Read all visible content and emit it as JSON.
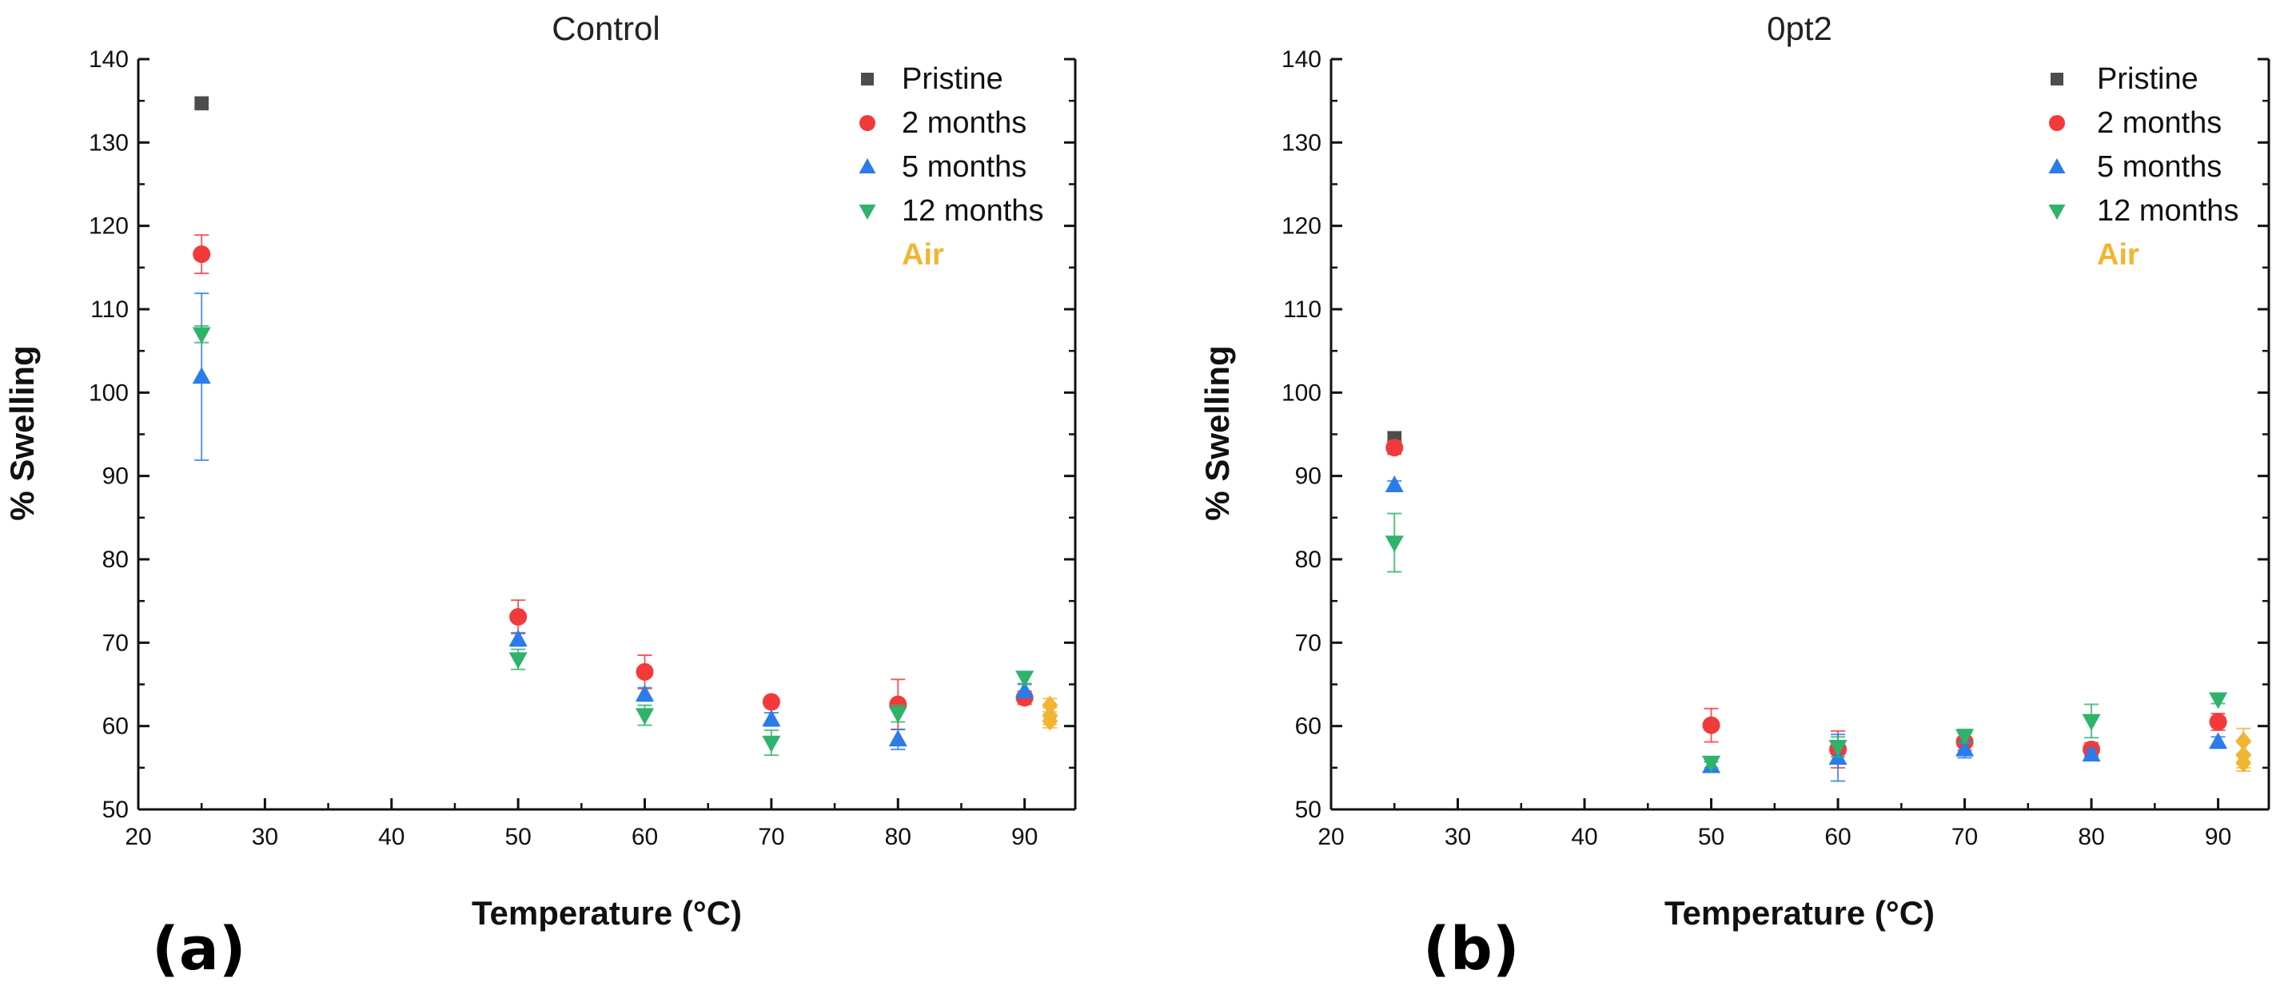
{
  "colors": {
    "Pristine": "#4d4d4d",
    "2 months": "#f23a3a",
    "5 months": "#2b7bea",
    "12 months": "#2fb36b",
    "Air": "#f2b532",
    "axis": "#111111"
  },
  "chart_data": [
    {
      "type": "scatter",
      "title": "Control",
      "panel_label": "(a)",
      "xlabel": "Temperature (°C)",
      "ylabel": "% Swelling",
      "xlim": [
        20,
        95
      ],
      "ylim": [
        50,
        140
      ],
      "xticks": [
        "20",
        "30",
        "40",
        "50",
        "60",
        "70",
        "80",
        "90"
      ],
      "yticks": [
        "50",
        "60",
        "70",
        "80",
        "90",
        "100",
        "110",
        "120",
        "130",
        "140"
      ],
      "legend_position": "top-right",
      "legend": [
        "Pristine",
        "2 months",
        "5 months",
        "12 months",
        "Air"
      ],
      "series": [
        {
          "name": "Pristine",
          "marker": "square",
          "points": [
            {
              "x": 25,
              "y": 134.7,
              "err": 0.5
            }
          ]
        },
        {
          "name": "2 months",
          "marker": "circle",
          "points": [
            {
              "x": 25,
              "y": 116.6,
              "err": 2.3
            },
            {
              "x": 50,
              "y": 73.1,
              "err": 2.0
            },
            {
              "x": 60,
              "y": 66.5,
              "err": 2.0
            },
            {
              "x": 70,
              "y": 62.9,
              "err": 0.5
            },
            {
              "x": 80,
              "y": 62.6,
              "err": 3.0
            },
            {
              "x": 90,
              "y": 63.4,
              "err": 0.8
            }
          ]
        },
        {
          "name": "5 months",
          "marker": "triangle-up",
          "points": [
            {
              "x": 25,
              "y": 101.9,
              "err": 10.0
            },
            {
              "x": 50,
              "y": 70.4,
              "err": 0.8
            },
            {
              "x": 60,
              "y": 63.8,
              "err": 0.8
            },
            {
              "x": 70,
              "y": 60.8,
              "err": 0.8
            },
            {
              "x": 80,
              "y": 58.4,
              "err": 1.2
            },
            {
              "x": 90,
              "y": 64.2,
              "err": 0.8
            }
          ]
        },
        {
          "name": "12 months",
          "marker": "triangle-down",
          "points": [
            {
              "x": 25,
              "y": 107.0,
              "err": 1.0
            },
            {
              "x": 50,
              "y": 68.0,
              "err": 1.2
            },
            {
              "x": 60,
              "y": 61.3,
              "err": 1.2
            },
            {
              "x": 70,
              "y": 58.0,
              "err": 1.5
            },
            {
              "x": 80,
              "y": 61.5,
              "err": 1.0
            },
            {
              "x": 90,
              "y": 65.8,
              "err": 0.7
            }
          ]
        },
        {
          "name": "Air",
          "marker": "diamond",
          "points": [
            {
              "x": 92,
              "y": 62.5,
              "err": 0.8
            },
            {
              "x": 92,
              "y": 61.2,
              "err": 1.0
            },
            {
              "x": 92,
              "y": 60.6,
              "err": 0.8
            }
          ]
        }
      ]
    },
    {
      "type": "scatter",
      "title": "0pt2",
      "panel_label": "(b)",
      "xlabel": "Temperature (°C)",
      "ylabel": "% Swelling",
      "xlim": [
        20,
        95
      ],
      "ylim": [
        50,
        140
      ],
      "xticks": [
        "20",
        "30",
        "40",
        "50",
        "60",
        "70",
        "80",
        "90"
      ],
      "yticks": [
        "50",
        "60",
        "70",
        "80",
        "90",
        "100",
        "110",
        "120",
        "130",
        "140"
      ],
      "legend_position": "top-right",
      "legend": [
        "Pristine",
        "2 months",
        "5 months",
        "12 months",
        "Air"
      ],
      "series": [
        {
          "name": "Pristine",
          "marker": "square",
          "points": [
            {
              "x": 25,
              "y": 94.5,
              "err": 0.8
            }
          ]
        },
        {
          "name": "2 months",
          "marker": "circle",
          "points": [
            {
              "x": 25,
              "y": 93.4,
              "err": 0.8
            },
            {
              "x": 50,
              "y": 60.1,
              "err": 2.0
            },
            {
              "x": 60,
              "y": 57.2,
              "err": 2.2
            },
            {
              "x": 70,
              "y": 58.1,
              "err": 1.0
            },
            {
              "x": 80,
              "y": 57.2,
              "err": 0.8
            },
            {
              "x": 90,
              "y": 60.5,
              "err": 1.0
            }
          ]
        },
        {
          "name": "5 months",
          "marker": "triangle-up",
          "points": [
            {
              "x": 25,
              "y": 88.9,
              "err": 0.5
            },
            {
              "x": 50,
              "y": 55.2,
              "err": 0.5
            },
            {
              "x": 60,
              "y": 56.2,
              "err": 2.8
            },
            {
              "x": 70,
              "y": 57.2,
              "err": 1.0
            },
            {
              "x": 80,
              "y": 56.6,
              "err": 0.6
            },
            {
              "x": 90,
              "y": 58.1,
              "err": 0.6
            }
          ]
        },
        {
          "name": "12 months",
          "marker": "triangle-down",
          "points": [
            {
              "x": 25,
              "y": 82.0,
              "err": 3.5
            },
            {
              "x": 50,
              "y": 55.6,
              "err": 0.6
            },
            {
              "x": 60,
              "y": 57.5,
              "err": 1.2
            },
            {
              "x": 70,
              "y": 58.8,
              "err": 0.8
            },
            {
              "x": 80,
              "y": 60.6,
              "err": 2.0
            },
            {
              "x": 90,
              "y": 63.2,
              "err": 0.5
            }
          ]
        },
        {
          "name": "Air",
          "marker": "diamond",
          "points": [
            {
              "x": 92,
              "y": 58.2,
              "err": 1.5
            },
            {
              "x": 92,
              "y": 56.5,
              "err": 1.5
            },
            {
              "x": 92,
              "y": 55.6,
              "err": 1.0
            }
          ]
        }
      ]
    }
  ]
}
